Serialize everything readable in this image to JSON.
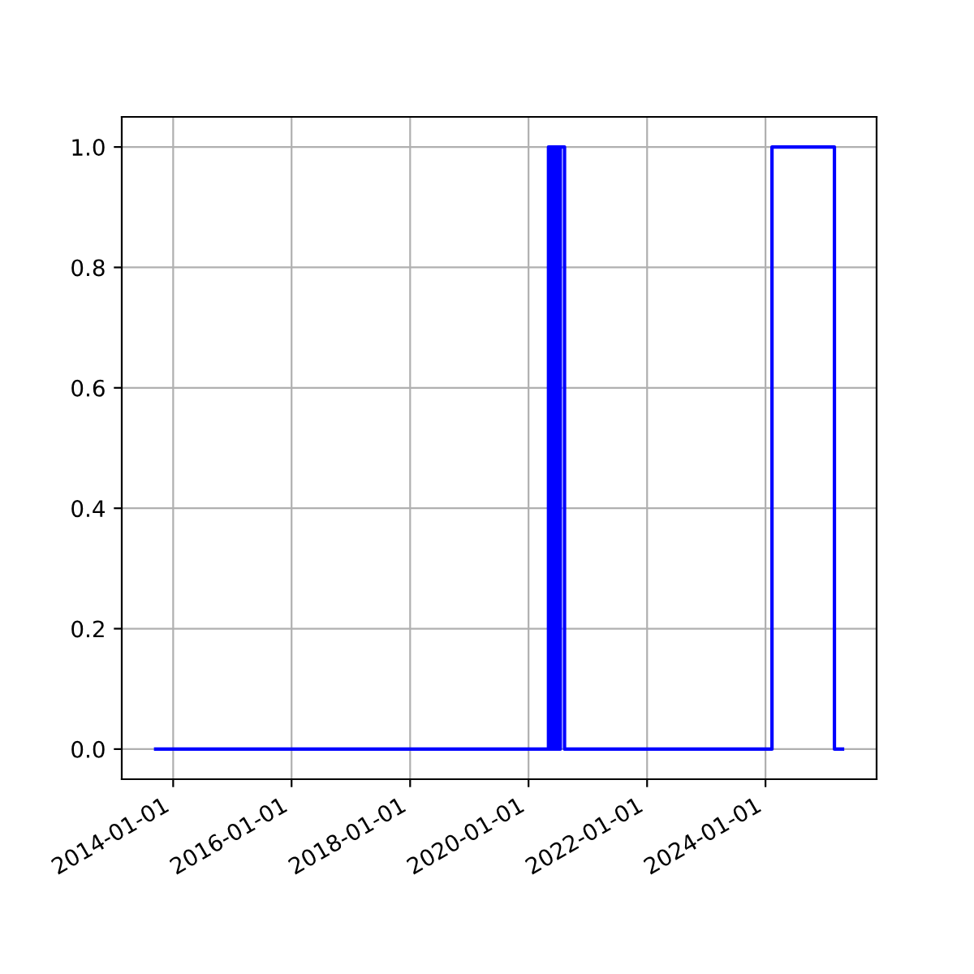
{
  "chart_data": {
    "type": "step",
    "x": [
      "2013-09-15",
      "2020-05-03",
      "2020-05-08",
      "2020-05-12",
      "2020-05-17",
      "2020-05-21",
      "2020-05-26",
      "2020-05-30",
      "2020-06-04",
      "2020-06-08",
      "2020-06-13",
      "2020-06-17",
      "2020-06-22",
      "2020-06-26",
      "2020-07-01",
      "2020-07-05",
      "2020-07-10",
      "2020-07-15",
      "2020-08-10",
      "2024-02-10",
      "2025-03-01",
      "2025-04-20"
    ],
    "series": [
      {
        "color": "#0000ff",
        "values": [
          0,
          1,
          0,
          1,
          0,
          1,
          0,
          1,
          0,
          1,
          0,
          1,
          0,
          1,
          0,
          1,
          0,
          1,
          0,
          1,
          0,
          0
        ]
      }
    ],
    "xlim": [
      "2013-02-18",
      "2025-11-16"
    ],
    "xticks": [
      "2014-01-01",
      "2016-01-01",
      "2018-01-01",
      "2020-01-01",
      "2022-01-01",
      "2024-01-01"
    ],
    "ylim": [
      -0.05,
      1.05
    ],
    "yticks": [
      {
        "value": 0,
        "label": "0.0"
      },
      {
        "value": 0.2,
        "label": "0.2"
      },
      {
        "value": 0.4,
        "label": "0.4"
      },
      {
        "value": 0.6,
        "label": "0.6"
      },
      {
        "value": 0.8,
        "label": "0.8"
      },
      {
        "value": 1,
        "label": "1.0"
      }
    ],
    "grid": true
  }
}
